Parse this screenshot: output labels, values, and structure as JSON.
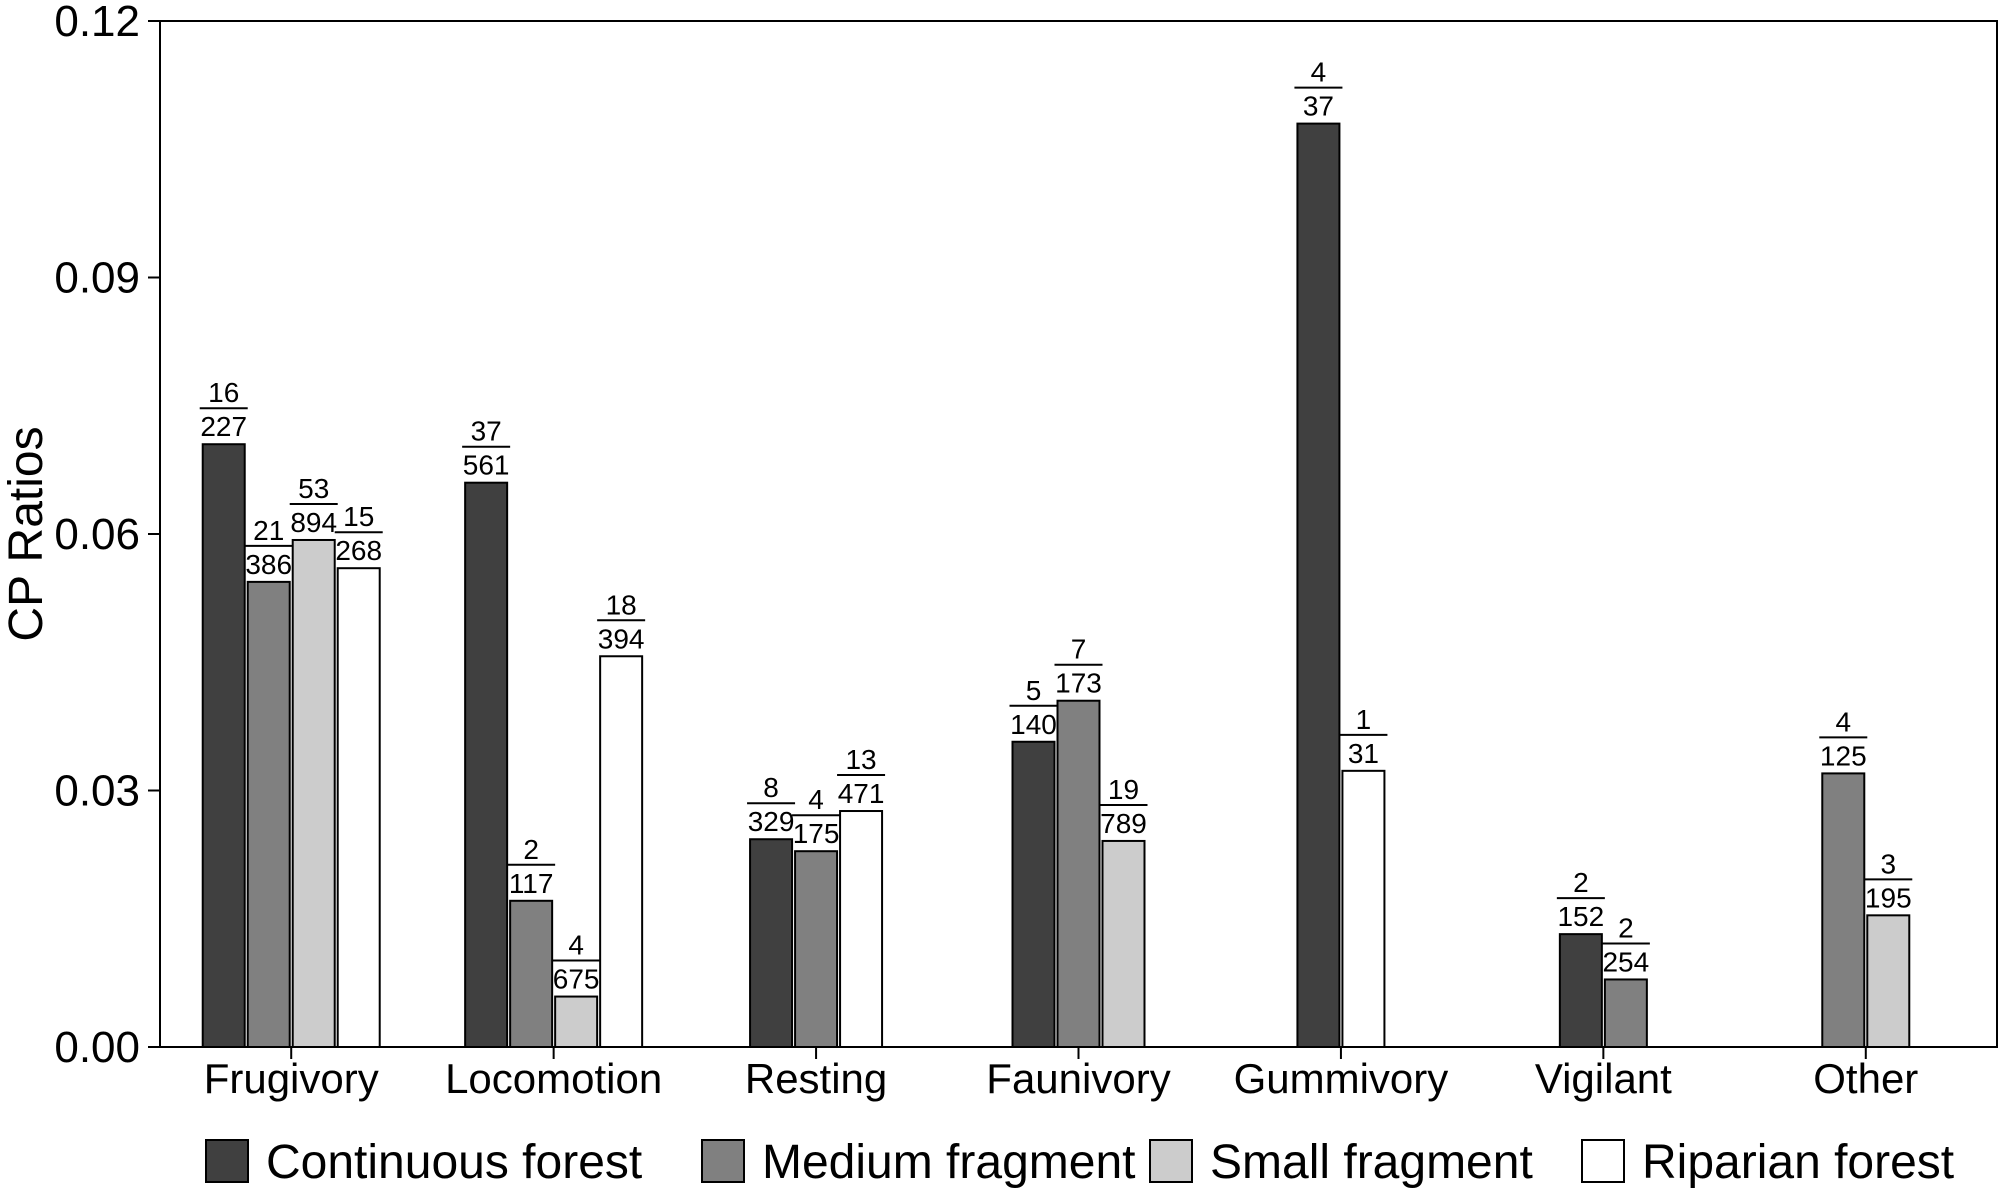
{
  "chart_data": {
    "type": "bar",
    "title": "",
    "xlabel": "",
    "ylabel": "CP Ratios",
    "ylim": [
      0,
      0.12
    ],
    "yticks": [
      "0.00",
      "0.03",
      "0.06",
      "0.09",
      "0.12"
    ],
    "grid": false,
    "legend_position": "bottom",
    "categories": [
      "Frugivory",
      "Locomotion",
      "Resting",
      "Faunivory",
      "Gummivory",
      "Vigilant",
      "Other"
    ],
    "series": [
      {
        "name": "Continuous forest",
        "color": "#404040",
        "values": [
          0.0705,
          0.066,
          0.0243,
          0.0357,
          0.108,
          0.0132,
          null
        ],
        "fractions": [
          [
            "16",
            "227"
          ],
          [
            "37",
            "561"
          ],
          [
            "8",
            "329"
          ],
          [
            "5",
            "140"
          ],
          [
            "4",
            "37"
          ],
          [
            "2",
            "152"
          ],
          null
        ]
      },
      {
        "name": "Medium fragment",
        "color": "#808080",
        "values": [
          0.0544,
          0.0171,
          0.0229,
          0.0405,
          null,
          0.0079,
          0.032
        ],
        "fractions": [
          [
            "21",
            "386"
          ],
          [
            "2",
            "117"
          ],
          [
            "4",
            "175"
          ],
          [
            "7",
            "173"
          ],
          null,
          [
            "2",
            "254"
          ],
          [
            "4",
            "125"
          ]
        ]
      },
      {
        "name": "Small fragment",
        "color": "#cccccc",
        "values": [
          0.0593,
          0.0059,
          null,
          0.0241,
          null,
          null,
          0.0154
        ],
        "fractions": [
          [
            "53",
            "894"
          ],
          [
            "4",
            "675"
          ],
          null,
          [
            "19",
            "789"
          ],
          null,
          null,
          [
            "3",
            "195"
          ]
        ]
      },
      {
        "name": "Riparian forest",
        "color": "#ffffff",
        "values": [
          0.056,
          0.0457,
          0.0276,
          null,
          0.0323,
          null,
          null
        ],
        "fractions": [
          [
            "15",
            "268"
          ],
          [
            "18",
            "394"
          ],
          [
            "13",
            "471"
          ],
          null,
          [
            "1",
            "31"
          ],
          null,
          null
        ]
      }
    ]
  }
}
